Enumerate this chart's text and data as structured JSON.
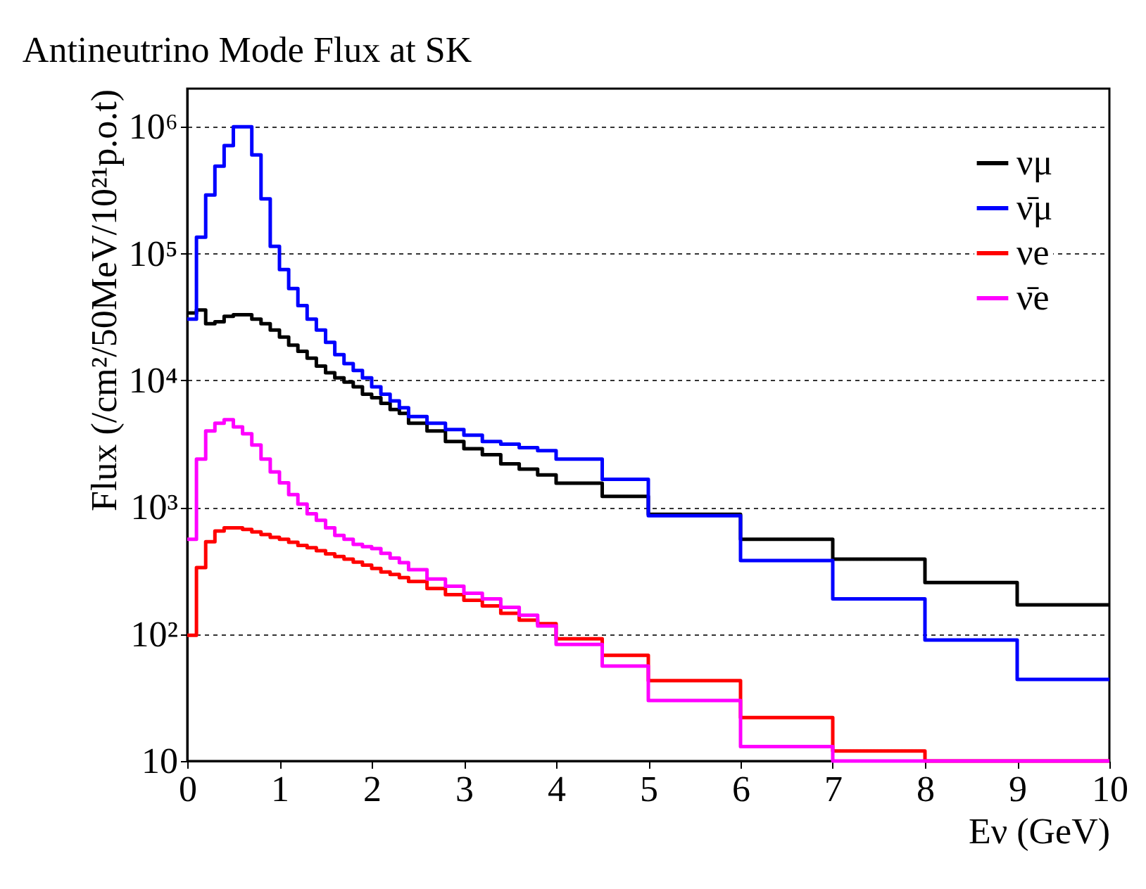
{
  "chart_data": {
    "type": "histogram",
    "title": "Antineutrino Mode Flux at SK",
    "xlabel": "Eν (GeV)",
    "ylabel": "Flux (/cm²/50MeV/10²¹p.o.t)",
    "bins": [
      0,
      0.1,
      0.2,
      0.3,
      0.4,
      0.5,
      0.6,
      0.7,
      0.8,
      0.9,
      1.0,
      1.1,
      1.2,
      1.3,
      1.4,
      1.5,
      1.6,
      1.7,
      1.8,
      1.9,
      2.0,
      2.1,
      2.2,
      2.3,
      2.4,
      2.6,
      2.8,
      3.0,
      3.2,
      3.4,
      3.6,
      3.8,
      4.0,
      4.5,
      5,
      6,
      7,
      8,
      9,
      10
    ],
    "series": [
      {
        "name": "νμ",
        "color": "#000000",
        "values": [
          34000,
          36000,
          28000,
          29000,
          32000,
          33000,
          33000,
          30500,
          28000,
          25000,
          22000,
          19000,
          17000,
          15000,
          13000,
          11500,
          10500,
          9700,
          8900,
          7800,
          7300,
          6600,
          5900,
          5500,
          4600,
          4000,
          3300,
          2900,
          2600,
          2200,
          2000,
          1800,
          1550,
          1220,
          880,
          560,
          390,
          255,
          170
        ]
      },
      {
        "name": "ν̄μ",
        "color": "#0000ff",
        "values": [
          30500,
          135000,
          290000,
          490000,
          710000,
          1000000,
          1000000,
          600000,
          270000,
          114000,
          75000,
          53000,
          39000,
          30500,
          25000,
          20000,
          16000,
          13600,
          12000,
          10500,
          8900,
          7800,
          6900,
          6100,
          5200,
          4600,
          4100,
          3700,
          3300,
          3150,
          2950,
          2800,
          2400,
          1660,
          860,
          380,
          190,
          90,
          44
        ]
      },
      {
        "name": "νe",
        "color": "#ff0000",
        "values": [
          98,
          335,
          535,
          650,
          690,
          690,
          670,
          640,
          610,
          580,
          560,
          530,
          500,
          480,
          455,
          430,
          410,
          390,
          370,
          350,
          330,
          309,
          296,
          279,
          260,
          229,
          205,
          185,
          167,
          146,
          129,
          121,
          92,
          68,
          43,
          22,
          12,
          10,
          10
        ]
      },
      {
        "name": "ν̄e",
        "color": "#ff00ff",
        "values": [
          560,
          2400,
          4000,
          4600,
          4900,
          4300,
          3800,
          3100,
          2400,
          1900,
          1560,
          1260,
          1060,
          890,
          790,
          690,
          600,
          560,
          510,
          490,
          472,
          434,
          398,
          366,
          322,
          272,
          239,
          210,
          190,
          163,
          141,
          116,
          83,
          56,
          30,
          13,
          10,
          10,
          10
        ]
      }
    ],
    "xlim": [
      0,
      10
    ],
    "xticks": [
      0,
      1,
      2,
      3,
      4,
      5,
      6,
      7,
      8,
      9,
      10
    ],
    "ylim": [
      10,
      2000000
    ],
    "log": true,
    "yticks": [
      10,
      {
        "value": 100,
        "label": "10²"
      },
      {
        "value": 1000,
        "label": "10³"
      },
      {
        "value": 10000,
        "label": "10⁴"
      },
      {
        "value": 100000,
        "label": "10⁵"
      },
      {
        "value": 1000000,
        "label": "10⁶"
      }
    ],
    "grid": "y",
    "legend": "top right",
    "line_style": "solid"
  }
}
